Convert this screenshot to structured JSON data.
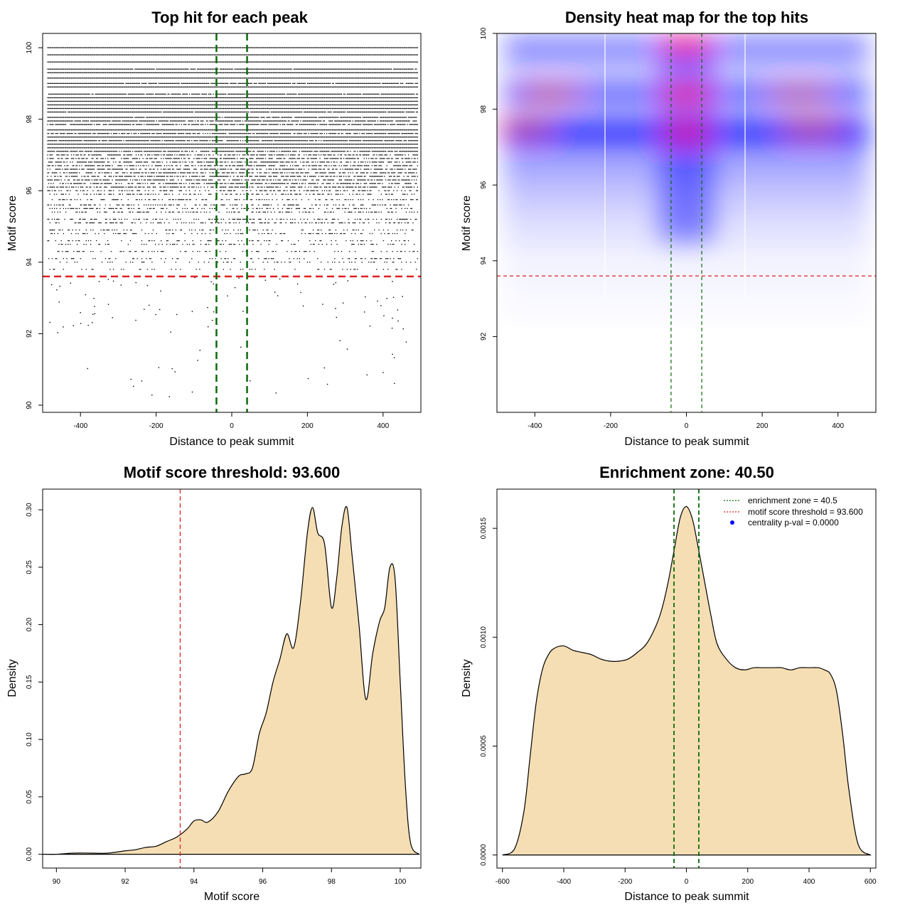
{
  "figure": {
    "colors": {
      "threshold_line": "#e02020",
      "zone_line": "#0a6a0a",
      "density_fill": "#f5deb3",
      "heat_low": "#ffffff",
      "heat_mid": "#0000ff",
      "heat_high": "#ff0000",
      "legend_marker": "#0000ff"
    }
  },
  "chart_data": [
    {
      "type": "scatter",
      "title": "Top hit for each peak",
      "xlabel": "Distance to peak summit",
      "ylabel": "Motif score",
      "xlim": [
        -500,
        500
      ],
      "ylim": [
        90,
        100
      ],
      "x_ticks": [
        -400,
        -200,
        0,
        200,
        400
      ],
      "y_ticks": [
        90,
        92,
        94,
        96,
        98,
        100
      ],
      "reference_lines": {
        "horizontal_threshold": 93.6,
        "vertical_zone": [
          -40.5,
          40.5
        ]
      },
      "points_description": "dense horizontal bands of points at discrete motif scores from ~93.6 to 100 across x = -490..490; sparse points below 93.6",
      "score_levels": [
        100.0,
        99.8,
        99.6,
        99.4,
        99.3,
        99.15,
        99.0,
        98.9,
        98.7,
        98.6,
        98.5,
        98.4,
        98.3,
        98.2,
        98.05,
        97.95,
        97.85,
        97.7,
        97.6,
        97.5,
        97.4,
        97.3,
        97.2,
        97.1,
        97.0,
        96.9,
        96.8,
        96.7,
        96.6,
        96.5,
        96.4,
        96.3,
        96.2,
        96.1,
        96.0,
        95.9,
        95.75,
        95.6,
        95.5,
        95.4,
        95.2,
        95.1,
        94.9,
        94.8,
        94.6,
        94.5,
        94.3,
        94.1,
        94.0,
        93.8
      ],
      "grid": false
    },
    {
      "type": "heatmap",
      "title": "Density heat map for the top hits",
      "xlabel": "Distance to peak summit",
      "ylabel": "Motif score",
      "xlim": [
        -500,
        500
      ],
      "ylim": [
        90,
        100
      ],
      "x_ticks": [
        -400,
        -200,
        0,
        200,
        400
      ],
      "y_ticks": [
        92,
        94,
        96,
        98,
        100
      ],
      "reference_lines": {
        "horizontal_threshold": 93.6,
        "vertical_zone": [
          -40.5,
          40.5
        ]
      },
      "hotspots": [
        {
          "x": 0,
          "y": 99.7,
          "intensity": 1.0
        },
        {
          "x": 0,
          "y": 98.4,
          "intensity": 0.95
        },
        {
          "x": 0,
          "y": 97.4,
          "intensity": 0.9
        },
        {
          "x": -430,
          "y": 97.5,
          "intensity": 0.55
        },
        {
          "x": 330,
          "y": 97.5,
          "intensity": 0.55
        },
        {
          "x": -360,
          "y": 98.4,
          "intensity": 0.5
        },
        {
          "x": 300,
          "y": 98.4,
          "intensity": 0.45
        }
      ],
      "grid": false
    },
    {
      "type": "area",
      "title": "Motif score threshold: 93.600",
      "xlabel": "Motif score",
      "ylabel": "Density",
      "xlim": [
        89.6,
        100.6
      ],
      "ylim": [
        -0.012,
        0.318
      ],
      "x_ticks": [
        90,
        92,
        94,
        96,
        98,
        100
      ],
      "y_ticks": [
        0.0,
        0.05,
        0.1,
        0.15,
        0.2,
        0.25,
        0.3
      ],
      "y_tick_labels": [
        "0.00",
        "0.05",
        "0.10",
        "0.15",
        "0.20",
        "0.25",
        "0.30"
      ],
      "reference_lines": {
        "vertical_threshold": 93.6
      },
      "x": [
        89.6,
        90.0,
        90.5,
        91.0,
        91.5,
        92.0,
        92.3,
        92.6,
        92.9,
        93.2,
        93.5,
        93.8,
        94.0,
        94.2,
        94.4,
        94.7,
        95.0,
        95.3,
        95.5,
        95.7,
        95.9,
        96.1,
        96.3,
        96.5,
        96.7,
        96.9,
        97.1,
        97.3,
        97.45,
        97.6,
        97.8,
        98.0,
        98.15,
        98.3,
        98.45,
        98.6,
        98.8,
        99.0,
        99.2,
        99.4,
        99.55,
        99.7,
        99.85,
        100.0,
        100.15,
        100.3,
        100.55
      ],
      "y": [
        0.0,
        0.0,
        0.001,
        0.001,
        0.001,
        0.003,
        0.004,
        0.006,
        0.007,
        0.011,
        0.015,
        0.022,
        0.029,
        0.03,
        0.028,
        0.037,
        0.055,
        0.068,
        0.07,
        0.075,
        0.105,
        0.123,
        0.15,
        0.17,
        0.192,
        0.18,
        0.22,
        0.28,
        0.302,
        0.28,
        0.27,
        0.215,
        0.24,
        0.285,
        0.302,
        0.26,
        0.2,
        0.135,
        0.175,
        0.203,
        0.215,
        0.25,
        0.24,
        0.15,
        0.06,
        0.01,
        0.0
      ],
      "grid": false
    },
    {
      "type": "area",
      "title": "Enrichment zone: 40.50",
      "xlabel": "Distance to peak summit",
      "ylabel": "Density",
      "xlim": [
        -618,
        618
      ],
      "ylim": [
        -6e-05,
        0.00168
      ],
      "x_ticks": [
        -600,
        -400,
        -200,
        0,
        200,
        400,
        600
      ],
      "y_ticks": [
        0.0,
        0.0005,
        0.001,
        0.0015
      ],
      "y_tick_labels": [
        "0.0000",
        "0.0005",
        "0.0010",
        "0.0015"
      ],
      "reference_lines": {
        "vertical_zone": [
          -40.5,
          40.5
        ]
      },
      "legend": {
        "placement": "top-right",
        "entries": [
          "enrichment zone = 40.5",
          "motif score threshold = 93.600",
          "centrality p-val = 0.0000"
        ]
      },
      "x": [
        -600,
        -560,
        -530,
        -510,
        -490,
        -470,
        -450,
        -430,
        -400,
        -370,
        -340,
        -310,
        -280,
        -250,
        -220,
        -190,
        -160,
        -130,
        -100,
        -80,
        -60,
        -40,
        -20,
        0,
        20,
        40,
        60,
        80,
        100,
        130,
        160,
        190,
        220,
        250,
        280,
        310,
        340,
        370,
        400,
        430,
        450,
        470,
        490,
        510,
        530,
        560,
        600
      ],
      "y": [
        0.0,
        3e-05,
        0.0002,
        0.00045,
        0.0007,
        0.00085,
        0.00092,
        0.00095,
        0.00096,
        0.00094,
        0.00093,
        0.00092,
        0.0009,
        0.00089,
        0.00089,
        0.0009,
        0.00093,
        0.00097,
        0.00105,
        0.00113,
        0.00125,
        0.0014,
        0.00155,
        0.0016,
        0.00154,
        0.0014,
        0.00125,
        0.0011,
        0.00097,
        0.0009,
        0.00086,
        0.00085,
        0.00086,
        0.00086,
        0.00086,
        0.00086,
        0.00085,
        0.00086,
        0.00086,
        0.00086,
        0.00085,
        0.00083,
        0.00075,
        0.00055,
        0.0003,
        5e-05,
        0.0
      ],
      "grid": false
    }
  ]
}
